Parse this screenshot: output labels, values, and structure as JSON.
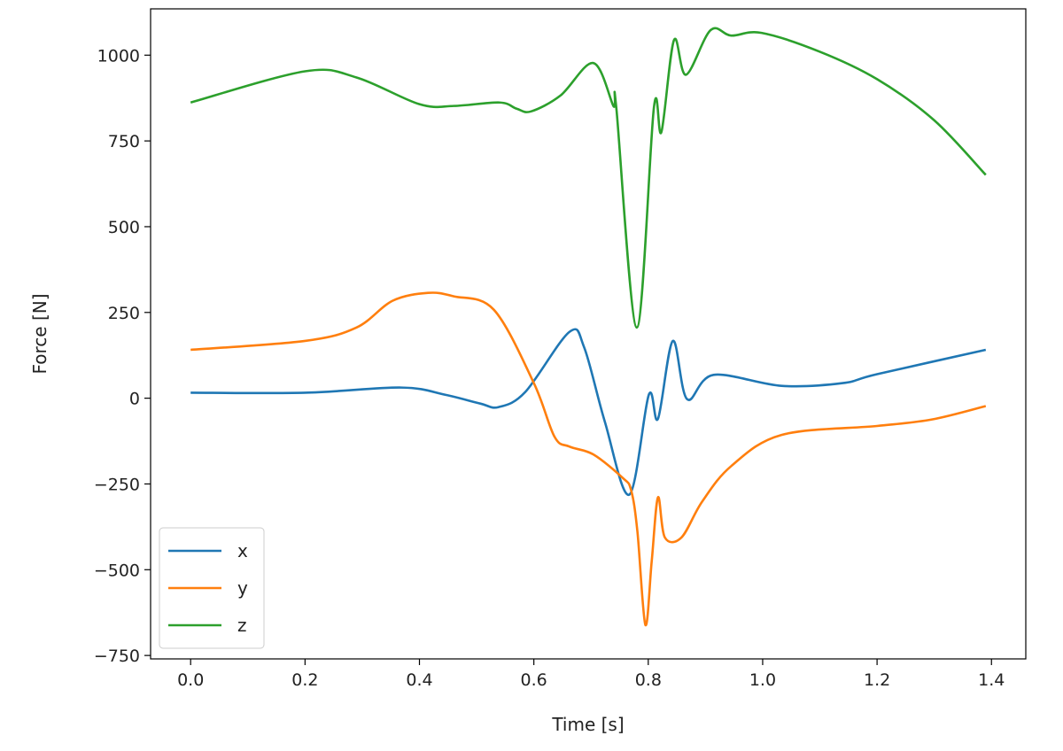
{
  "chart_data": {
    "type": "line",
    "title": "",
    "xlabel": "Time [s]",
    "ylabel": "Force [N]",
    "xlim": [
      -0.07,
      1.46
    ],
    "ylim": [
      -760,
      1135
    ],
    "xticks": [
      0.0,
      0.2,
      0.4,
      0.6,
      0.8,
      1.0,
      1.2,
      1.4
    ],
    "xtick_labels": [
      "0.0",
      "0.2",
      "0.4",
      "0.6",
      "0.8",
      "1.0",
      "1.2",
      "1.4"
    ],
    "yticks": [
      -750,
      -500,
      -250,
      0,
      250,
      500,
      750,
      1000
    ],
    "ytick_labels": [
      "−750",
      "−500",
      "−250",
      "0",
      "250",
      "500",
      "750",
      "1000"
    ],
    "grid": false,
    "legend_position": "lower-left",
    "series": [
      {
        "name": "x",
        "color": "#1f77b4",
        "x": [
          0,
          0.2,
          0.368,
          0.445,
          0.507,
          0.538,
          0.585,
          0.662,
          0.688,
          0.724,
          0.767,
          0.801,
          0.817,
          0.843,
          0.868,
          0.914,
          1.033,
          1.14,
          1.2,
          1.39
        ],
        "y": [
          16,
          16,
          31,
          10,
          -16,
          -26,
          18,
          193,
          148,
          -68,
          -281,
          10,
          -60,
          167,
          -3,
          68,
          36,
          44,
          70,
          141
        ]
      },
      {
        "name": "y",
        "color": "#ff7f0e",
        "x": [
          0,
          0.2,
          0.29,
          0.353,
          0.415,
          0.46,
          0.53,
          0.6,
          0.636,
          0.662,
          0.704,
          0.755,
          0.77,
          0.781,
          0.795,
          0.806,
          0.817,
          0.829,
          0.858,
          0.894,
          0.945,
          1.033,
          1.2,
          1.296,
          1.39
        ],
        "y": [
          141,
          167,
          206,
          284,
          307,
          297,
          258,
          44,
          -112,
          -141,
          -164,
          -232,
          -268,
          -388,
          -661,
          -476,
          -289,
          -406,
          -406,
          -302,
          -198,
          -107,
          -81,
          -62,
          -23
        ]
      },
      {
        "name": "z",
        "color": "#2ca02c",
        "x": [
          0,
          0.2,
          0.29,
          0.4,
          0.46,
          0.54,
          0.57,
          0.595,
          0.647,
          0.704,
          0.739,
          0.744,
          0.78,
          0.81,
          0.823,
          0.845,
          0.866,
          0.909,
          0.945,
          0.998,
          1.1,
          1.2,
          1.3,
          1.39
        ],
        "y": [
          862,
          953,
          935,
          857,
          852,
          862,
          844,
          836,
          883,
          977,
          852,
          849,
          206,
          849,
          776,
          1044,
          943,
          1073,
          1057,
          1065,
          1010,
          930,
          810,
          651
        ]
      }
    ]
  }
}
